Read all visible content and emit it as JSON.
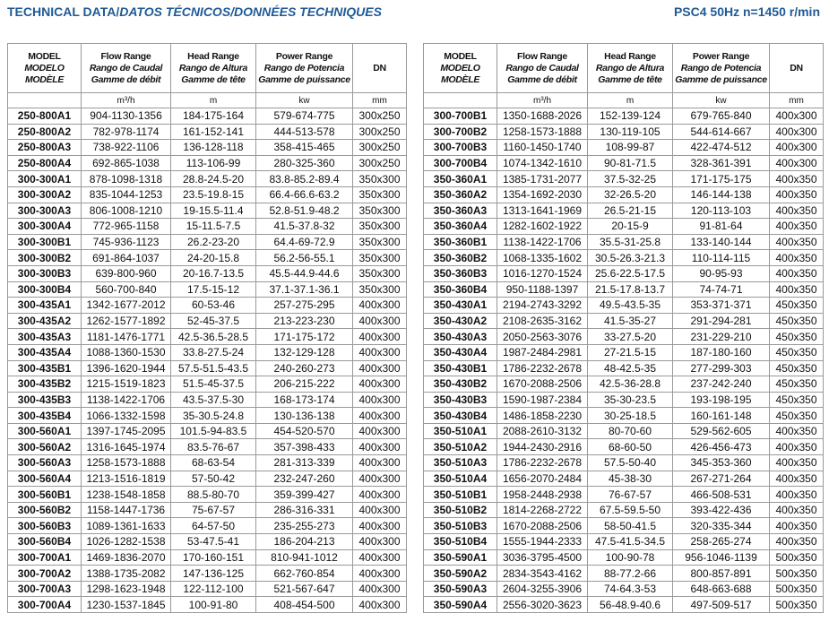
{
  "header": {
    "title": "TECHNICAL DATA/",
    "title_italic": "DATOS TÉCNICOS/DONNÉES TECHNIQUES",
    "model_info": "PSC4 50Hz n=1450 r/min"
  },
  "tables": [
    {
      "columns": [
        [
          "MODEL",
          "MODELO",
          "MODÈLE"
        ],
        [
          "Flow Range",
          "Rango de Caudal",
          "Gamme de débit"
        ],
        [
          "Head Range",
          "Rango de Altura",
          "Gamme de tête"
        ],
        [
          "Power Range",
          "Rango de Potencia",
          "Gamme de puissance"
        ],
        [
          "DN"
        ]
      ],
      "units": [
        "m³/h",
        "m",
        "kw",
        "mm"
      ],
      "rows": [
        [
          "250-800A1",
          "904-1130-1356",
          "184-175-164",
          "579-674-775",
          "300x250"
        ],
        [
          "250-800A2",
          "782-978-1174",
          "161-152-141",
          "444-513-578",
          "300x250"
        ],
        [
          "250-800A3",
          "738-922-1106",
          "136-128-118",
          "358-415-465",
          "300x250"
        ],
        [
          "250-800A4",
          "692-865-1038",
          "113-106-99",
          "280-325-360",
          "300x250"
        ],
        [
          "300-300A1",
          "878-1098-1318",
          "28.8-24.5-20",
          "83.8-85.2-89.4",
          "350x300"
        ],
        [
          "300-300A2",
          "835-1044-1253",
          "23.5-19.8-15",
          "66.4-66.6-63.2",
          "350x300"
        ],
        [
          "300-300A3",
          "806-1008-1210",
          "19-15.5-11.4",
          "52.8-51.9-48.2",
          "350x300"
        ],
        [
          "300-300A4",
          "772-965-1158",
          "15-11.5-7.5",
          "41.5-37.8-32",
          "350x300"
        ],
        [
          "300-300B1",
          "745-936-1123",
          "26.2-23-20",
          "64.4-69-72.9",
          "350x300"
        ],
        [
          "300-300B2",
          "691-864-1037",
          "24-20-15.8",
          "56.2-56-55.1",
          "350x300"
        ],
        [
          "300-300B3",
          "639-800-960",
          "20-16.7-13.5",
          "45.5-44.9-44.6",
          "350x300"
        ],
        [
          "300-300B4",
          "560-700-840",
          "17.5-15-12",
          "37.1-37.1-36.1",
          "350x300"
        ],
        [
          "300-435A1",
          "1342-1677-2012",
          "60-53-46",
          "257-275-295",
          "400x300"
        ],
        [
          "300-435A2",
          "1262-1577-1892",
          "52-45-37.5",
          "213-223-230",
          "400x300"
        ],
        [
          "300-435A3",
          "1181-1476-1771",
          "42.5-36.5-28.5",
          "171-175-172",
          "400x300"
        ],
        [
          "300-435A4",
          "1088-1360-1530",
          "33.8-27.5-24",
          "132-129-128",
          "400x300"
        ],
        [
          "300-435B1",
          "1396-1620-1944",
          "57.5-51.5-43.5",
          "240-260-273",
          "400x300"
        ],
        [
          "300-435B2",
          "1215-1519-1823",
          "51.5-45-37.5",
          "206-215-222",
          "400x300"
        ],
        [
          "300-435B3",
          "1138-1422-1706",
          "43.5-37.5-30",
          "168-173-174",
          "400x300"
        ],
        [
          "300-435B4",
          "1066-1332-1598",
          "35-30.5-24.8",
          "130-136-138",
          "400x300"
        ],
        [
          "300-560A1",
          "1397-1745-2095",
          "101.5-94-83.5",
          "454-520-570",
          "400x300"
        ],
        [
          "300-560A2",
          "1316-1645-1974",
          "83.5-76-67",
          "357-398-433",
          "400x300"
        ],
        [
          "300-560A3",
          "1258-1573-1888",
          "68-63-54",
          "281-313-339",
          "400x300"
        ],
        [
          "300-560A4",
          "1213-1516-1819",
          "57-50-42",
          "232-247-260",
          "400x300"
        ],
        [
          "300-560B1",
          "1238-1548-1858",
          "88.5-80-70",
          "359-399-427",
          "400x300"
        ],
        [
          "300-560B2",
          "1158-1447-1736",
          "75-67-57",
          "286-316-331",
          "400x300"
        ],
        [
          "300-560B3",
          "1089-1361-1633",
          "64-57-50",
          "235-255-273",
          "400x300"
        ],
        [
          "300-560B4",
          "1026-1282-1538",
          "53-47.5-41",
          "186-204-213",
          "400x300"
        ],
        [
          "300-700A1",
          "1469-1836-2070",
          "170-160-151",
          "810-941-1012",
          "400x300"
        ],
        [
          "300-700A2",
          "1388-1735-2082",
          "147-136-125",
          "662-760-854",
          "400x300"
        ],
        [
          "300-700A3",
          "1298-1623-1948",
          "122-112-100",
          "521-567-647",
          "400x300"
        ],
        [
          "300-700A4",
          "1230-1537-1845",
          "100-91-80",
          "408-454-500",
          "400x300"
        ]
      ]
    },
    {
      "columns": [
        [
          "MODEL",
          "MODELO",
          "MODÈLE"
        ],
        [
          "Flow Range",
          "Rango de Caudal",
          "Gamme de débit"
        ],
        [
          "Head Range",
          "Rango de Altura",
          "Gamme de tête"
        ],
        [
          "Power Range",
          "Rango de Potencia",
          "Gamme de puissance"
        ],
        [
          "DN"
        ]
      ],
      "units": [
        "m³/h",
        "m",
        "kw",
        "mm"
      ],
      "rows": [
        [
          "300-700B1",
          "1350-1688-2026",
          "152-139-124",
          "679-765-840",
          "400x300"
        ],
        [
          "300-700B2",
          "1258-1573-1888",
          "130-119-105",
          "544-614-667",
          "400x300"
        ],
        [
          "300-700B3",
          "1160-1450-1740",
          "108-99-87",
          "422-474-512",
          "400x300"
        ],
        [
          "300-700B4",
          "1074-1342-1610",
          "90-81-71.5",
          "328-361-391",
          "400x300"
        ],
        [
          "350-360A1",
          "1385-1731-2077",
          "37.5-32-25",
          "171-175-175",
          "400x350"
        ],
        [
          "350-360A2",
          "1354-1692-2030",
          "32-26.5-20",
          "146-144-138",
          "400x350"
        ],
        [
          "350-360A3",
          "1313-1641-1969",
          "26.5-21-15",
          "120-113-103",
          "400x350"
        ],
        [
          "350-360A4",
          "1282-1602-1922",
          "20-15-9",
          "91-81-64",
          "400x350"
        ],
        [
          "350-360B1",
          "1138-1422-1706",
          "35.5-31-25.8",
          "133-140-144",
          "400x350"
        ],
        [
          "350-360B2",
          "1068-1335-1602",
          "30.5-26.3-21.3",
          "110-114-115",
          "400x350"
        ],
        [
          "350-360B3",
          "1016-1270-1524",
          "25.6-22.5-17.5",
          "90-95-93",
          "400x350"
        ],
        [
          "350-360B4",
          "950-1188-1397",
          "21.5-17.8-13.7",
          "74-74-71",
          "400x350"
        ],
        [
          "350-430A1",
          "2194-2743-3292",
          "49.5-43.5-35",
          "353-371-371",
          "450x350"
        ],
        [
          "350-430A2",
          "2108-2635-3162",
          "41.5-35-27",
          "291-294-281",
          "450x350"
        ],
        [
          "350-430A3",
          "2050-2563-3076",
          "33-27.5-20",
          "231-229-210",
          "450x350"
        ],
        [
          "350-430A4",
          "1987-2484-2981",
          "27-21.5-15",
          "187-180-160",
          "450x350"
        ],
        [
          "350-430B1",
          "1786-2232-2678",
          "48-42.5-35",
          "277-299-303",
          "450x350"
        ],
        [
          "350-430B2",
          "1670-2088-2506",
          "42.5-36-28.8",
          "237-242-240",
          "450x350"
        ],
        [
          "350-430B3",
          "1590-1987-2384",
          "35-30-23.5",
          "193-198-195",
          "450x350"
        ],
        [
          "350-430B4",
          "1486-1858-2230",
          "30-25-18.5",
          "160-161-148",
          "450x350"
        ],
        [
          "350-510A1",
          "2088-2610-3132",
          "80-70-60",
          "529-562-605",
          "400x350"
        ],
        [
          "350-510A2",
          "1944-2430-2916",
          "68-60-50",
          "426-456-473",
          "400x350"
        ],
        [
          "350-510A3",
          "1786-2232-2678",
          "57.5-50-40",
          "345-353-360",
          "400x350"
        ],
        [
          "350-510A4",
          "1656-2070-2484",
          "45-38-30",
          "267-271-264",
          "400x350"
        ],
        [
          "350-510B1",
          "1958-2448-2938",
          "76-67-57",
          "466-508-531",
          "400x350"
        ],
        [
          "350-510B2",
          "1814-2268-2722",
          "67.5-59.5-50",
          "393-422-436",
          "400x350"
        ],
        [
          "350-510B3",
          "1670-2088-2506",
          "58-50-41.5",
          "320-335-344",
          "400x350"
        ],
        [
          "350-510B4",
          "1555-1944-2333",
          "47.5-41.5-34.5",
          "258-265-274",
          "400x350"
        ],
        [
          "350-590A1",
          "3036-3795-4500",
          "100-90-78",
          "956-1046-1139",
          "500x350"
        ],
        [
          "350-590A2",
          "2834-3543-4162",
          "88-77.2-66",
          "800-857-891",
          "500x350"
        ],
        [
          "350-590A3",
          "2604-3255-3906",
          "74-64.3-53",
          "648-663-688",
          "500x350"
        ],
        [
          "350-590A4",
          "2556-3020-3623",
          "56-48.9-40.6",
          "497-509-517",
          "500x350"
        ]
      ]
    }
  ]
}
